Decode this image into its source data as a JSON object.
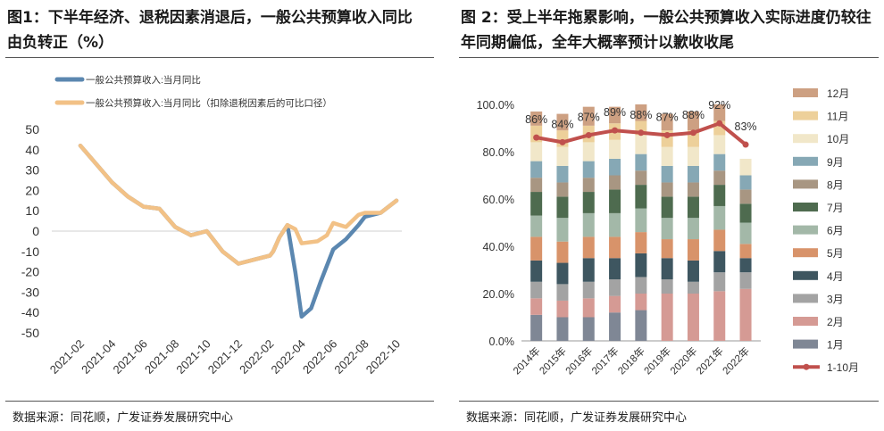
{
  "left": {
    "title": "图1：下半年经济、退税因素消退后，一般公共预算收入同比由负转正（%）",
    "source": "数据来源：同花顺，广发证券发展研究中心"
  },
  "right": {
    "title": "图 2：受上半年拖累影响，一般公共预算收入实际进度仍较往年同期偏低，全年大概率预计以歉收收尾",
    "source": "数据来源：同花顺，广发证券发展研究中心"
  },
  "chart_data": [
    {
      "type": "line",
      "legend": [
        "一般公共预算收入:当月同比",
        "一般公共预算收入:当月同比（扣除退税因素后的可比口径）"
      ],
      "x_labels": [
        "2021-02",
        "2021-04",
        "2021-06",
        "2021-08",
        "2021-10",
        "2021-12",
        "2022-02",
        "2022-04",
        "2022-06",
        "2022-08",
        "2022-10"
      ],
      "ylim": [
        -50,
        50
      ],
      "yticks": [
        50,
        40,
        30,
        20,
        10,
        0,
        -10,
        -20,
        -30,
        -40,
        -50
      ],
      "colors": [
        "#5B87B0",
        "#F2C186"
      ],
      "series": [
        {
          "name": "一般公共预算收入:当月同比",
          "x": [
            0,
            1,
            1.5,
            2,
            2.5,
            3,
            3.5,
            4,
            4.5,
            5,
            5.5,
            6,
            6.1,
            6.3,
            6.55,
            6.8,
            7,
            7.3,
            7.6,
            8,
            8.4,
            8.8,
            9,
            9.5,
            10
          ],
          "values": [
            42,
            24,
            17,
            12,
            11,
            2,
            -2,
            0,
            -10,
            -16,
            -14,
            -12,
            -10,
            -3,
            3,
            -20,
            -42,
            -38,
            -25,
            -9,
            -4,
            3,
            7,
            9,
            15
          ]
        },
        {
          "name": "一般公共预算收入:当月同比（扣除退税因素后的可比口径）",
          "x": [
            0,
            1,
            1.5,
            2,
            2.5,
            3,
            3.5,
            4,
            4.5,
            5,
            5.5,
            6,
            6.1,
            6.3,
            6.55,
            6.8,
            7,
            7.5,
            7.8,
            8,
            8.4,
            8.8,
            9,
            9.5,
            10
          ],
          "values": [
            42,
            24,
            17,
            12,
            11,
            2,
            -2,
            0,
            -10,
            -16,
            -14,
            -12,
            -10,
            -3,
            3,
            1,
            -6,
            -5,
            -2,
            4,
            2,
            8,
            9,
            9,
            15
          ]
        }
      ]
    },
    {
      "type": "bar",
      "stacked": true,
      "categories": [
        "2014年",
        "2015年",
        "2016年",
        "2017年",
        "2018年",
        "2019年",
        "2020年",
        "2021年",
        "2022年"
      ],
      "yticks": [
        "0.0%",
        "20.0%",
        "40.0%",
        "60.0%",
        "80.0%",
        "100.0%"
      ],
      "ylim": [
        0,
        1.05
      ],
      "stack_series": [
        {
          "name": "1月",
          "color": "#7F8795",
          "values": [
            0.11,
            0.1,
            0.1,
            0.12,
            0.13,
            0.0,
            0.0,
            0.0,
            0.0
          ]
        },
        {
          "name": "2月",
          "color": "#D59A94",
          "values": [
            0.07,
            0.07,
            0.08,
            0.07,
            0.07,
            0.2,
            0.2,
            0.21,
            0.22
          ]
        },
        {
          "name": "3月",
          "color": "#A3A3A3",
          "values": [
            0.07,
            0.07,
            0.07,
            0.07,
            0.07,
            0.06,
            0.05,
            0.08,
            0.07
          ]
        },
        {
          "name": "4月",
          "color": "#3E5660",
          "values": [
            0.09,
            0.09,
            0.1,
            0.09,
            0.1,
            0.09,
            0.09,
            0.09,
            0.06
          ]
        },
        {
          "name": "5月",
          "color": "#D8936A",
          "values": [
            0.1,
            0.09,
            0.09,
            0.09,
            0.09,
            0.08,
            0.09,
            0.09,
            0.06
          ]
        },
        {
          "name": "6月",
          "color": "#A3B8A8",
          "values": [
            0.09,
            0.1,
            0.1,
            0.1,
            0.1,
            0.09,
            0.09,
            0.1,
            0.09
          ]
        },
        {
          "name": "7月",
          "color": "#4E6B4F",
          "values": [
            0.1,
            0.09,
            0.09,
            0.1,
            0.1,
            0.09,
            0.09,
            0.09,
            0.08
          ]
        },
        {
          "name": "8月",
          "color": "#A89682",
          "values": [
            0.06,
            0.06,
            0.06,
            0.06,
            0.06,
            0.06,
            0.06,
            0.06,
            0.06
          ]
        },
        {
          "name": "9月",
          "color": "#86A8B5",
          "values": [
            0.07,
            0.07,
            0.07,
            0.07,
            0.07,
            0.07,
            0.07,
            0.07,
            0.06
          ]
        },
        {
          "name": "10月",
          "color": "#F1E7C9",
          "values": [
            0.08,
            0.08,
            0.08,
            0.08,
            0.08,
            0.08,
            0.08,
            0.08,
            0.07
          ]
        },
        {
          "name": "11月",
          "color": "#EDD09A",
          "values": [
            0.07,
            0.07,
            0.07,
            0.07,
            0.06,
            0.07,
            0.07,
            0.06,
            0.0
          ]
        },
        {
          "name": "12月",
          "color": "#CDA082",
          "values": [
            0.06,
            0.07,
            0.08,
            0.07,
            0.07,
            0.07,
            0.08,
            0.07,
            0.0
          ]
        }
      ],
      "line_series": {
        "name": "1-10月",
        "color": "#C0504D",
        "values": [
          0.86,
          0.84,
          0.87,
          0.89,
          0.88,
          0.87,
          0.88,
          0.92,
          0.83
        ]
      },
      "line_labels": [
        "86%",
        "84%",
        "87%",
        "89%",
        "88%",
        "87%",
        "88%",
        "92%",
        "83%"
      ]
    }
  ]
}
